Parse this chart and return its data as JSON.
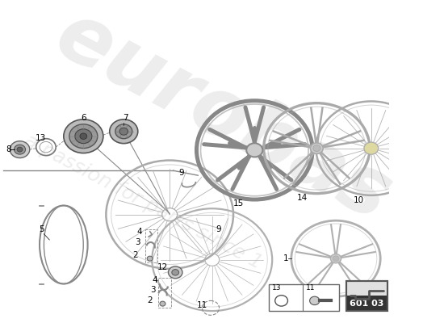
{
  "bg_color": "#ffffff",
  "part_number_box": "601 03",
  "line_color": "#888888",
  "dark_color": "#555555",
  "label_fontsize": 7.5,
  "figsize": [
    5.5,
    4.0
  ],
  "dpi": 100
}
